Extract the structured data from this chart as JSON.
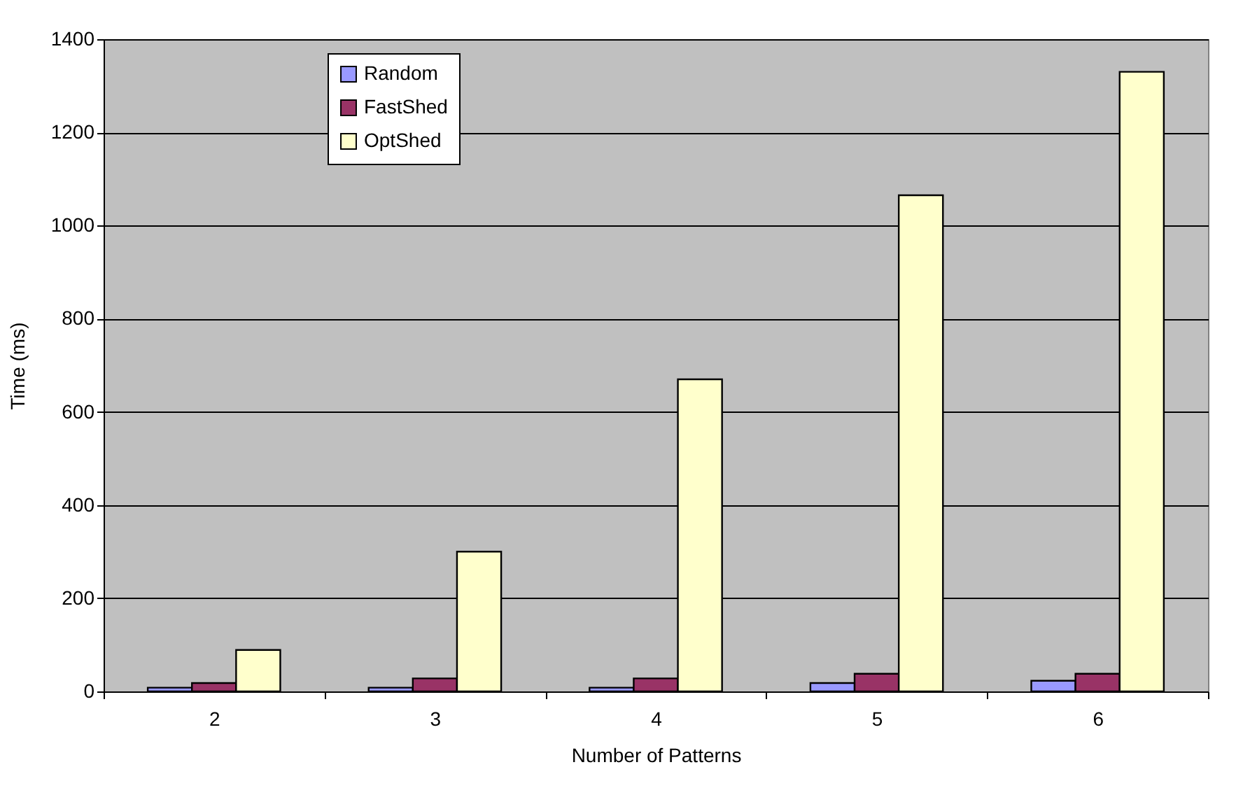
{
  "chart_data": {
    "type": "bar",
    "xlabel": "Number of Patterns",
    "ylabel": "Time (ms)",
    "categories": [
      "2",
      "3",
      "4",
      "5",
      "6"
    ],
    "series": [
      {
        "name": "Random",
        "color": "#9999ff",
        "values": [
          8,
          8,
          8,
          18,
          23
        ]
      },
      {
        "name": "FastShed",
        "color": "#993366",
        "values": [
          18,
          28,
          28,
          38,
          38
        ]
      },
      {
        "name": "OptShed",
        "color": "#ffffcc",
        "values": [
          89,
          300,
          670,
          1065,
          1330
        ]
      }
    ],
    "ylim": [
      0,
      1400
    ],
    "yticks": [
      0,
      200,
      400,
      600,
      800,
      1000,
      1200,
      1400
    ],
    "grid": "y",
    "legend": "top left"
  }
}
